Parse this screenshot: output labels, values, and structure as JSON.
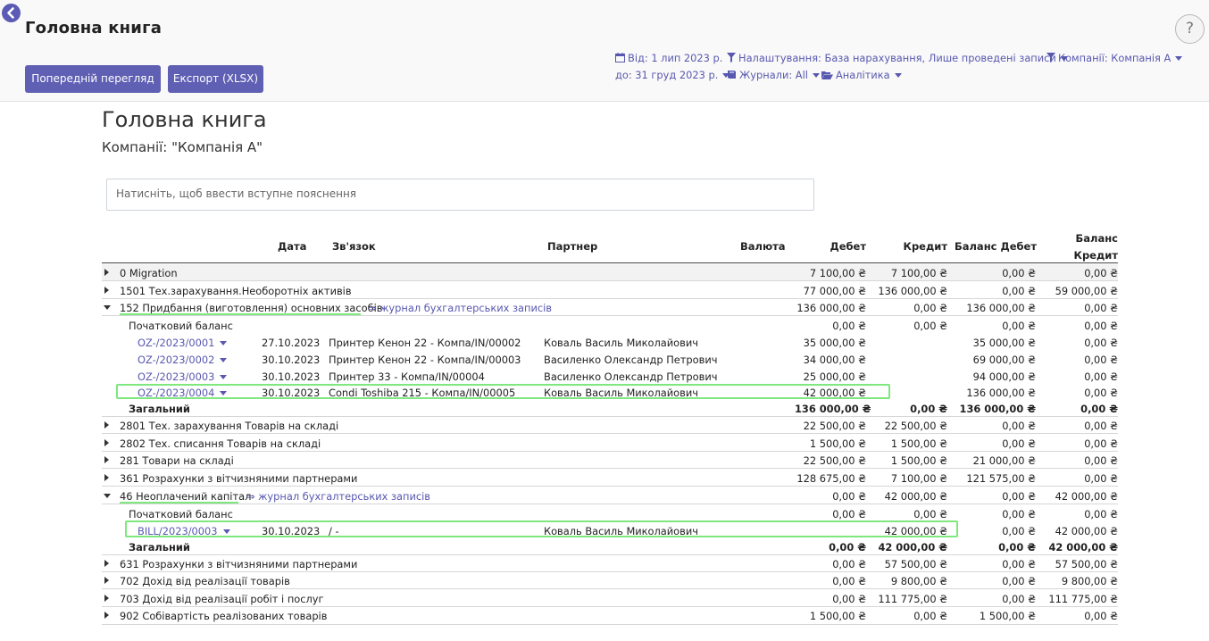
{
  "control_panel": {
    "title": "Головна книга",
    "buttons": {
      "preview": "Попередній перегляд",
      "export": "Експорт (XLSX)"
    },
    "help": "?",
    "filters": {
      "date_from": "Від: 1 лип 2023 р.",
      "settings": "Налаштування: База нарахування, Лише проведені записи",
      "companies": "Компанії: Компанія А",
      "date_to": "до: 31 груд 2023 р.",
      "journals": "Журнали: All",
      "analytics": "Аналітика"
    }
  },
  "report": {
    "title": "Головна книга",
    "company": "Компанії: \"Компанія А\"",
    "intro_placeholder": "Натисніть, щоб ввести вступне пояснення",
    "headers": {
      "date": "Дата",
      "ref": "Зв'язок",
      "partner": "Партнер",
      "currency": "Валюта",
      "debit": "Дебет",
      "credit": "Кредит",
      "bal_debit": "Баланс Дебет",
      "bal_credit_1": "Баланс",
      "bal_credit_2": "Кредит"
    },
    "accounts": {
      "a0": {
        "name": "0 Migration",
        "debit": "7 100,00 ₴",
        "credit": "7 100,00 ₴",
        "bal_debit": "0,00 ₴",
        "bal_credit": "0,00 ₴"
      },
      "a1501": {
        "name": "1501 Тех.зарахування.Необоротніх активів",
        "debit": "77 000,00 ₴",
        "credit": "136 000,00 ₴",
        "bal_debit": "0,00 ₴",
        "bal_credit": "59 000,00 ₴"
      },
      "a152": {
        "name": "152 Придбання (виготовлення) основних засобів",
        "journal_link": "⇒ журнал бухгалтерських записів",
        "debit": "136 000,00 ₴",
        "credit": "0,00 ₴",
        "bal_debit": "136 000,00 ₴",
        "bal_credit": "0,00 ₴",
        "initial": {
          "label": "Початковий баланс",
          "debit": "0,00 ₴",
          "credit": "0,00 ₴",
          "bal_debit": "0,00 ₴",
          "bal_credit": "0,00 ₴"
        },
        "lines": [
          {
            "move": "OZ-/2023/0001",
            "date": "27.10.2023",
            "ref": "Принтер Кенон 22 - Компа/IN/00002",
            "partner": "Коваль Василь Миколайович",
            "debit": "35 000,00 ₴",
            "credit": "",
            "bal_debit": "35 000,00 ₴",
            "bal_credit": "0,00 ₴"
          },
          {
            "move": "OZ-/2023/0002",
            "date": "30.10.2023",
            "ref": "Принтер Кенон 22 - Компа/IN/00003",
            "partner": "Василенко Олександр Петрович",
            "debit": "34 000,00 ₴",
            "credit": "",
            "bal_debit": "69 000,00 ₴",
            "bal_credit": "0,00 ₴"
          },
          {
            "move": "OZ-/2023/0003",
            "date": "30.10.2023",
            "ref": "Принтер 33 - Компа/IN/00004",
            "partner": "Василенко Олександр Петрович",
            "debit": "25 000,00 ₴",
            "credit": "",
            "bal_debit": "94 000,00 ₴",
            "bal_credit": "0,00 ₴"
          },
          {
            "move": "OZ-/2023/0004",
            "date": "30.10.2023",
            "ref": "Condi Toshiba 215 - Компа/IN/00005",
            "partner": "Коваль Василь Миколайович",
            "debit": "42 000,00 ₴",
            "credit": "",
            "bal_debit": "136 000,00 ₴",
            "bal_credit": "0,00 ₴"
          }
        ],
        "total": {
          "label": "Загальний",
          "debit": "136 000,00 ₴",
          "credit": "0,00 ₴",
          "bal_debit": "136 000,00 ₴",
          "bal_credit": "0,00 ₴"
        }
      },
      "a2801": {
        "name": "2801 Тех. зарахування Товарів на складі",
        "debit": "22 500,00 ₴",
        "credit": "22 500,00 ₴",
        "bal_debit": "0,00 ₴",
        "bal_credit": "0,00 ₴"
      },
      "a2802": {
        "name": "2802 Тех. списання Товарів на складі",
        "debit": "1 500,00 ₴",
        "credit": "1 500,00 ₴",
        "bal_debit": "0,00 ₴",
        "bal_credit": "0,00 ₴"
      },
      "a281": {
        "name": "281 Товари на складі",
        "debit": "22 500,00 ₴",
        "credit": "1 500,00 ₴",
        "bal_debit": "21 000,00 ₴",
        "bal_credit": "0,00 ₴"
      },
      "a361": {
        "name": "361 Розрахунки з вітчизняними партнерами",
        "debit": "128 675,00 ₴",
        "credit": "7 100,00 ₴",
        "bal_debit": "121 575,00 ₴",
        "bal_credit": "0,00 ₴"
      },
      "a46": {
        "name": "46 Неоплачений капітал",
        "journal_link": "⇒ журнал бухгалтерських записів",
        "debit": "0,00 ₴",
        "credit": "42 000,00 ₴",
        "bal_debit": "0,00 ₴",
        "bal_credit": "42 000,00 ₴",
        "initial": {
          "label": "Початковий баланс",
          "debit": "0,00 ₴",
          "credit": "0,00 ₴",
          "bal_debit": "0,00 ₴",
          "bal_credit": "0,00 ₴"
        },
        "lines": [
          {
            "move": "BILL/2023/0003",
            "date": "30.10.2023",
            "ref": "/ -",
            "partner": "Коваль Василь Миколайович",
            "debit": "",
            "credit": "42 000,00 ₴",
            "bal_debit": "0,00 ₴",
            "bal_credit": "42 000,00 ₴"
          }
        ],
        "total": {
          "label": "Загальний",
          "debit": "0,00 ₴",
          "credit": "42 000,00 ₴",
          "bal_debit": "0,00 ₴",
          "bal_credit": "42 000,00 ₴"
        }
      },
      "a631": {
        "name": "631 Розрахунки з вітчизняними партнерами",
        "debit": "0,00 ₴",
        "credit": "57 500,00 ₴",
        "bal_debit": "0,00 ₴",
        "bal_credit": "57 500,00 ₴"
      },
      "a702": {
        "name": "702 Дохід від реалізації товарів",
        "debit": "0,00 ₴",
        "credit": "9 800,00 ₴",
        "bal_debit": "0,00 ₴",
        "bal_credit": "9 800,00 ₴"
      },
      "a703": {
        "name": "703 Дохід від реалізації робіт і послуг",
        "debit": "0,00 ₴",
        "credit": "111 775,00 ₴",
        "bal_debit": "0,00 ₴",
        "bal_credit": "111 775,00 ₴"
      },
      "a902": {
        "name": "902 Собівартість реалізованих товарів",
        "debit": "1 500,00 ₴",
        "credit": "0,00 ₴",
        "bal_debit": "1 500,00 ₴",
        "bal_credit": "0,00 ₴"
      }
    }
  }
}
